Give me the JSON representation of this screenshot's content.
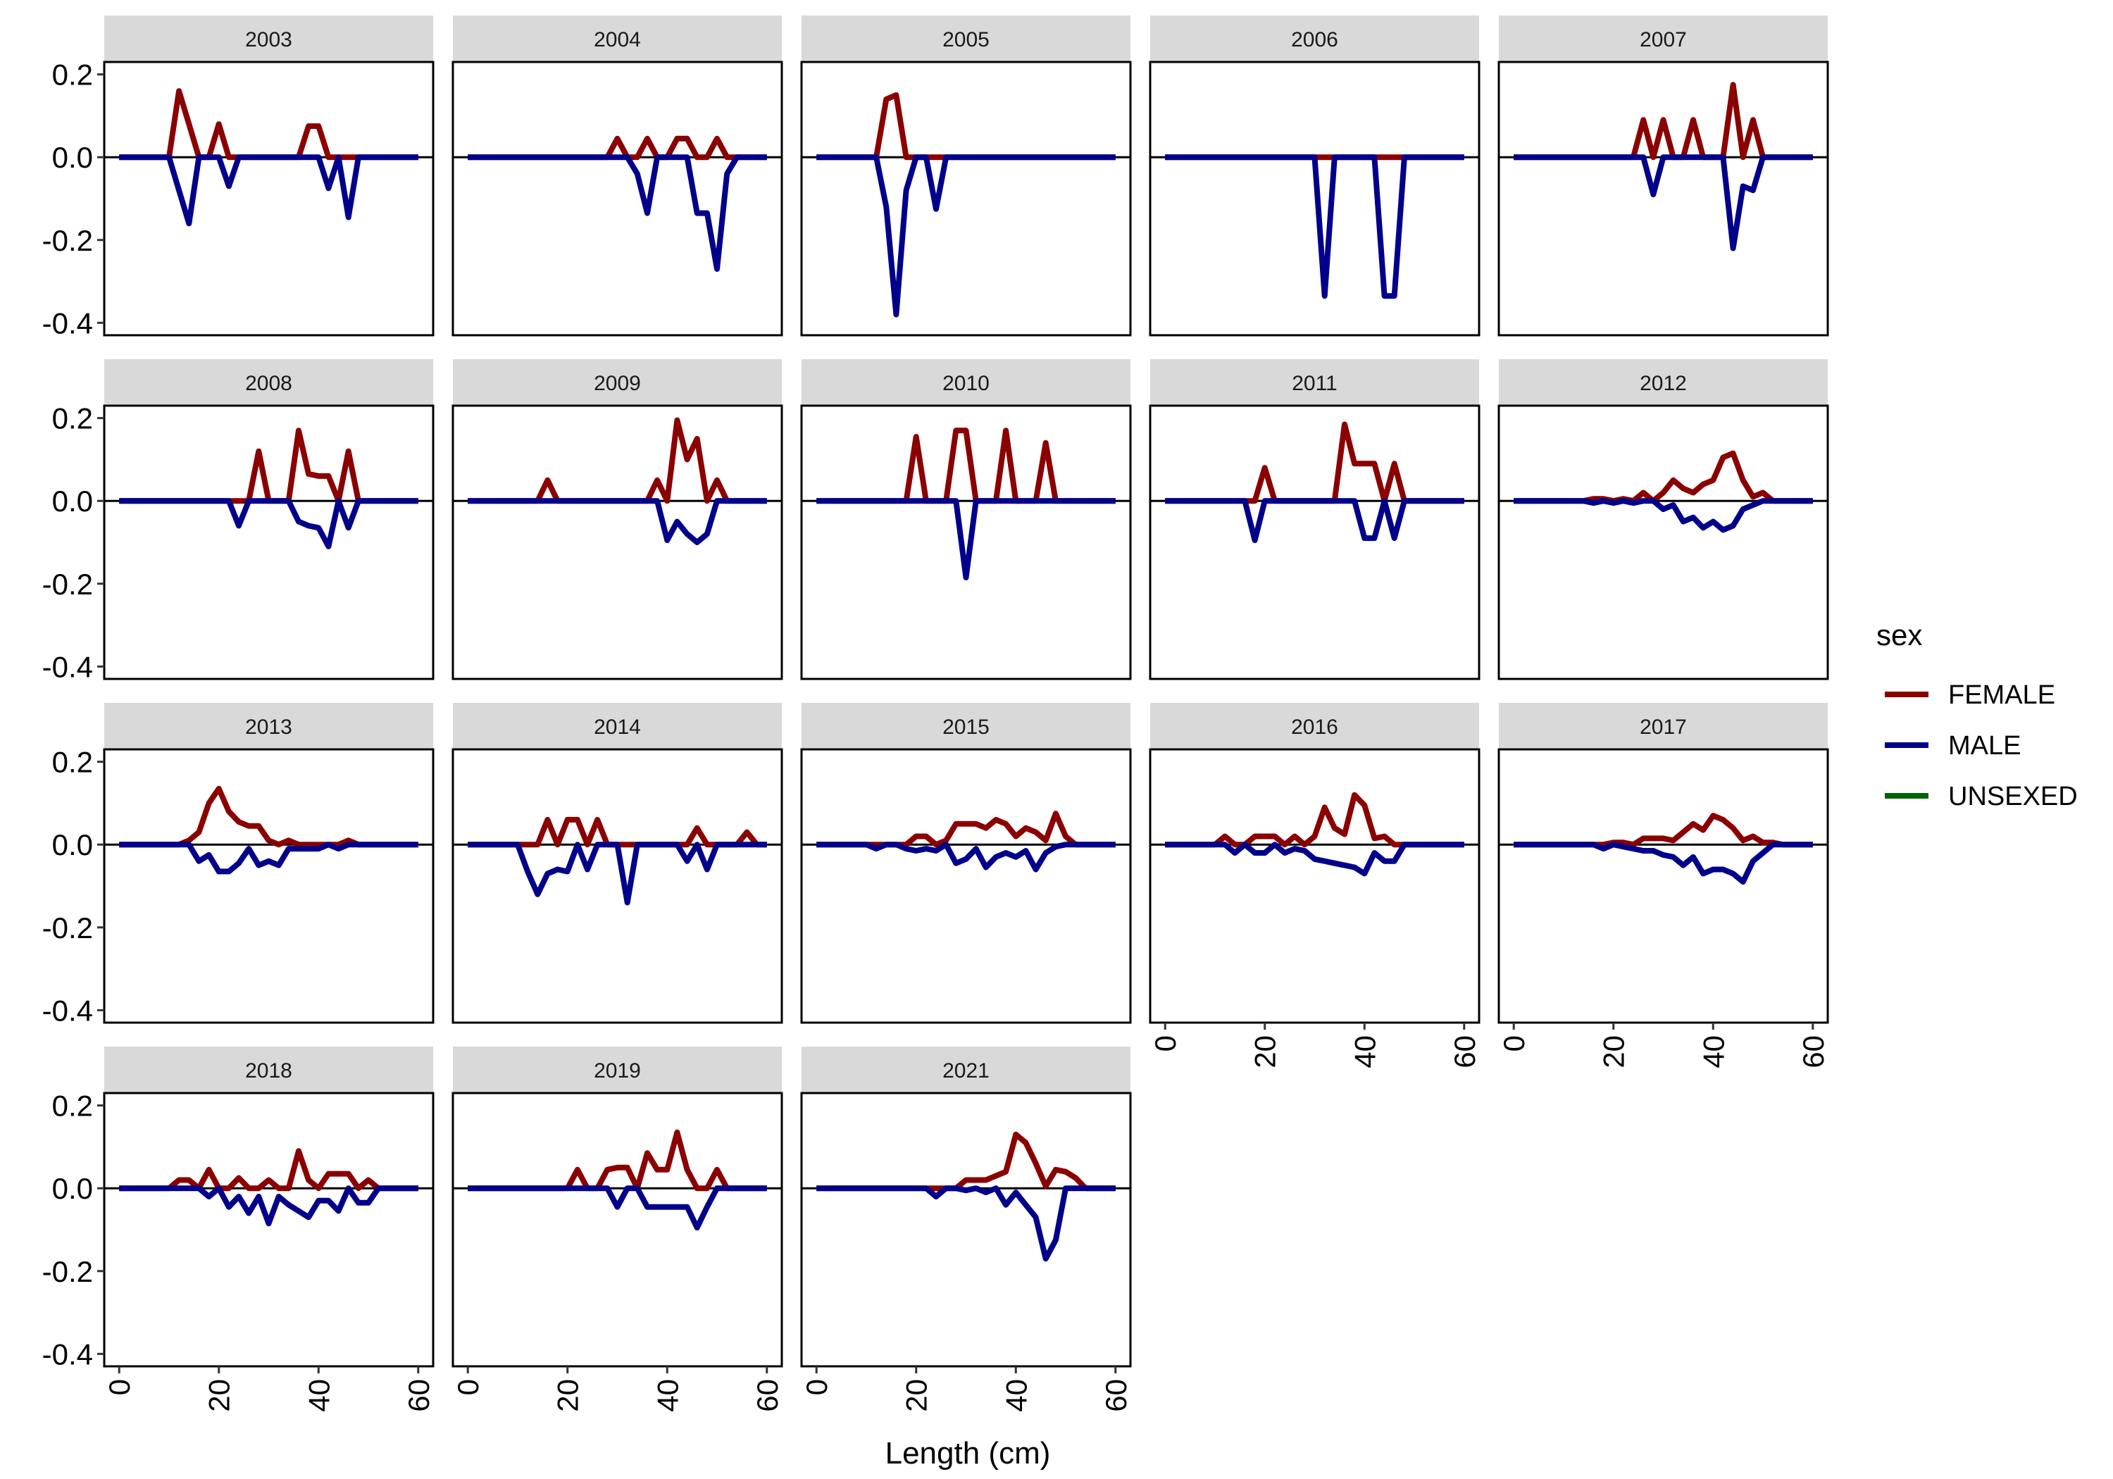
{
  "chart_data": {
    "type": "line",
    "facet_by": "year",
    "xlabel": "Length (cm)",
    "ylabel": "",
    "xlim": [
      0,
      60
    ],
    "ylim": [
      -0.4,
      0.2
    ],
    "x_ticks": [
      0,
      20,
      40,
      60
    ],
    "y_ticks": [
      -0.4,
      -0.2,
      0.0,
      0.2
    ],
    "zero_line": true,
    "legend": {
      "title": "sex",
      "position": "right",
      "items": [
        {
          "name": "FEMALE",
          "color": "#8b0000"
        },
        {
          "name": "MALE",
          "color": "#00008b"
        },
        {
          "name": "UNSEXED",
          "color": "#006400"
        }
      ]
    },
    "x": [
      0,
      2,
      4,
      6,
      8,
      10,
      12,
      14,
      16,
      18,
      20,
      22,
      24,
      26,
      28,
      30,
      32,
      34,
      36,
      38,
      40,
      42,
      44,
      46,
      48,
      50,
      52,
      54,
      56,
      58,
      60
    ],
    "panels": [
      {
        "year": "2003",
        "FEMALE": [
          0,
          0,
          0,
          0,
          0,
          0,
          0.16,
          0.08,
          0,
          0,
          0.08,
          0,
          0,
          0,
          0,
          0,
          0,
          0,
          0,
          0.075,
          0.075,
          0,
          0,
          0,
          0,
          0,
          0,
          0,
          0,
          0,
          0
        ],
        "MALE": [
          0,
          0,
          0,
          0,
          0,
          0,
          -0.08,
          -0.16,
          0,
          0,
          0,
          -0.07,
          0,
          0,
          0,
          0,
          0,
          0,
          0,
          0,
          0,
          -0.075,
          0,
          -0.145,
          0,
          0,
          0,
          0,
          0,
          0,
          0
        ]
      },
      {
        "year": "2004",
        "FEMALE": [
          0,
          0,
          0,
          0,
          0,
          0,
          0,
          0,
          0,
          0,
          0,
          0,
          0,
          0,
          0,
          0.045,
          0,
          0,
          0.045,
          0,
          0,
          0.045,
          0.045,
          0,
          0,
          0.045,
          0,
          0,
          0,
          0,
          0
        ],
        "MALE": [
          0,
          0,
          0,
          0,
          0,
          0,
          0,
          0,
          0,
          0,
          0,
          0,
          0,
          0,
          0,
          0,
          0,
          -0.04,
          -0.135,
          0,
          0,
          0,
          0,
          -0.135,
          -0.135,
          -0.27,
          -0.04,
          0,
          0,
          0,
          0
        ]
      },
      {
        "year": "2005",
        "FEMALE": [
          0,
          0,
          0,
          0,
          0,
          0,
          0,
          0.14,
          0.15,
          0,
          0,
          0,
          0,
          0,
          0,
          0,
          0,
          0,
          0,
          0,
          0,
          0,
          0,
          0,
          0,
          0,
          0,
          0,
          0,
          0,
          0
        ],
        "MALE": [
          0,
          0,
          0,
          0,
          0,
          0,
          0,
          -0.12,
          -0.38,
          -0.08,
          0,
          0,
          -0.125,
          0,
          0,
          0,
          0,
          0,
          0,
          0,
          0,
          0,
          0,
          0,
          0,
          0,
          0,
          0,
          0,
          0,
          0
        ]
      },
      {
        "year": "2006",
        "FEMALE": [
          0,
          0,
          0,
          0,
          0,
          0,
          0,
          0,
          0,
          0,
          0,
          0,
          0,
          0,
          0,
          0,
          0,
          0,
          0,
          0,
          0,
          0,
          0,
          0,
          0,
          0,
          0,
          0,
          0,
          0,
          0
        ],
        "MALE": [
          0,
          0,
          0,
          0,
          0,
          0,
          0,
          0,
          0,
          0,
          0,
          0,
          0,
          0,
          0,
          0,
          -0.335,
          0,
          0,
          0,
          0,
          0,
          -0.335,
          -0.335,
          0,
          0,
          0,
          0,
          0,
          0,
          0
        ]
      },
      {
        "year": "2007",
        "FEMALE": [
          0,
          0,
          0,
          0,
          0,
          0,
          0,
          0,
          0,
          0,
          0,
          0,
          0,
          0.09,
          0,
          0.09,
          0,
          0,
          0.09,
          0,
          0,
          0,
          0.175,
          0,
          0.09,
          0,
          0,
          0,
          0,
          0,
          0
        ],
        "MALE": [
          0,
          0,
          0,
          0,
          0,
          0,
          0,
          0,
          0,
          0,
          0,
          0,
          0,
          0,
          -0.09,
          0,
          0,
          0,
          0,
          0,
          0,
          0,
          -0.22,
          -0.07,
          -0.08,
          0,
          0,
          0,
          0,
          0,
          0
        ]
      },
      {
        "year": "2008",
        "FEMALE": [
          0,
          0,
          0,
          0,
          0,
          0,
          0,
          0,
          0,
          0,
          0,
          0,
          0,
          0,
          0.12,
          0,
          0,
          0,
          0.17,
          0.065,
          0.06,
          0.06,
          0,
          0.12,
          0,
          0,
          0,
          0,
          0,
          0,
          0
        ],
        "MALE": [
          0,
          0,
          0,
          0,
          0,
          0,
          0,
          0,
          0,
          0,
          0,
          0,
          -0.06,
          0,
          0,
          0,
          0,
          0,
          -0.05,
          -0.06,
          -0.065,
          -0.11,
          0,
          -0.065,
          0,
          0,
          0,
          0,
          0,
          0,
          0
        ]
      },
      {
        "year": "2009",
        "FEMALE": [
          0,
          0,
          0,
          0,
          0,
          0,
          0,
          0,
          0.05,
          0,
          0,
          0,
          0,
          0,
          0,
          0,
          0,
          0,
          0,
          0.05,
          0,
          0.195,
          0.1,
          0.15,
          0,
          0.05,
          0,
          0,
          0,
          0,
          0
        ],
        "MALE": [
          0,
          0,
          0,
          0,
          0,
          0,
          0,
          0,
          0,
          0,
          0,
          0,
          0,
          0,
          0,
          0,
          0,
          0,
          0,
          0,
          -0.095,
          -0.05,
          -0.08,
          -0.1,
          -0.08,
          0,
          0,
          0,
          0,
          0,
          0
        ]
      },
      {
        "year": "2010",
        "FEMALE": [
          0,
          0,
          0,
          0,
          0,
          0,
          0,
          0,
          0,
          0,
          0.155,
          0,
          0,
          0,
          0.17,
          0.17,
          0,
          0,
          0,
          0.17,
          0,
          0,
          0,
          0.14,
          0,
          0,
          0,
          0,
          0,
          0,
          0
        ],
        "MALE": [
          0,
          0,
          0,
          0,
          0,
          0,
          0,
          0,
          0,
          0,
          0,
          0,
          0,
          0,
          0,
          -0.185,
          0,
          0,
          0,
          0,
          0,
          0,
          0,
          0,
          0,
          0,
          0,
          0,
          0,
          0,
          0
        ]
      },
      {
        "year": "2011",
        "FEMALE": [
          0,
          0,
          0,
          0,
          0,
          0,
          0,
          0,
          0,
          0,
          0.08,
          0,
          0,
          0,
          0,
          0,
          0,
          0,
          0.185,
          0.09,
          0.09,
          0.09,
          0,
          0.09,
          0,
          0,
          0,
          0,
          0,
          0,
          0
        ],
        "MALE": [
          0,
          0,
          0,
          0,
          0,
          0,
          0,
          0,
          0,
          -0.095,
          0,
          0,
          0,
          0,
          0,
          0,
          0,
          0,
          0,
          0,
          -0.09,
          -0.09,
          0,
          -0.09,
          0,
          0,
          0,
          0,
          0,
          0,
          0
        ]
      },
      {
        "year": "2012",
        "FEMALE": [
          0,
          0,
          0,
          0,
          0,
          0,
          0,
          0,
          0.005,
          0.005,
          0,
          0.005,
          0,
          0.02,
          0,
          0.02,
          0.05,
          0.03,
          0.02,
          0.04,
          0.05,
          0.105,
          0.115,
          0.05,
          0.01,
          0.02,
          0,
          0,
          0,
          0,
          0
        ],
        "MALE": [
          0,
          0,
          0,
          0,
          0,
          0,
          0,
          0,
          -0.005,
          0,
          -0.005,
          0,
          -0.005,
          0,
          0,
          -0.02,
          -0.01,
          -0.05,
          -0.04,
          -0.065,
          -0.05,
          -0.07,
          -0.06,
          -0.02,
          -0.01,
          0,
          0,
          0,
          0,
          0,
          0
        ]
      },
      {
        "year": "2013",
        "FEMALE": [
          0,
          0,
          0,
          0,
          0,
          0,
          0,
          0.01,
          0.03,
          0.1,
          0.135,
          0.08,
          0.055,
          0.045,
          0.045,
          0.01,
          0,
          0.01,
          0,
          0,
          0,
          0,
          0,
          0.01,
          0,
          0,
          0,
          0,
          0,
          0,
          0
        ],
        "MALE": [
          0,
          0,
          0,
          0,
          0,
          0,
          0,
          0,
          -0.04,
          -0.025,
          -0.065,
          -0.065,
          -0.045,
          -0.01,
          -0.05,
          -0.04,
          -0.05,
          -0.01,
          -0.01,
          -0.01,
          -0.01,
          0,
          -0.01,
          0,
          0,
          0,
          0,
          0,
          0,
          0,
          0
        ]
      },
      {
        "year": "2014",
        "FEMALE": [
          0,
          0,
          0,
          0,
          0,
          0,
          0,
          0,
          0.06,
          0,
          0.06,
          0.06,
          0,
          0.06,
          0,
          0,
          0,
          0,
          0,
          0,
          0,
          0,
          0,
          0.04,
          0,
          0,
          0,
          0,
          0.03,
          0,
          0
        ],
        "MALE": [
          0,
          0,
          0,
          0,
          0,
          0,
          -0.065,
          -0.12,
          -0.07,
          -0.06,
          -0.065,
          0,
          -0.06,
          0,
          0,
          0,
          -0.14,
          0,
          0,
          0,
          0,
          0,
          -0.04,
          0,
          -0.06,
          0,
          0,
          0,
          0,
          0,
          0
        ]
      },
      {
        "year": "2015",
        "FEMALE": [
          0,
          0,
          0,
          0,
          0,
          0,
          0,
          0,
          0,
          0,
          0.02,
          0.02,
          0,
          0.01,
          0.05,
          0.05,
          0.05,
          0.04,
          0.06,
          0.05,
          0.02,
          0.04,
          0.03,
          0.01,
          0.075,
          0.02,
          0,
          0,
          0,
          0,
          0
        ],
        "MALE": [
          0,
          0,
          0,
          0,
          0,
          0,
          -0.01,
          0,
          0,
          -0.01,
          -0.015,
          -0.01,
          -0.015,
          0,
          -0.045,
          -0.035,
          -0.01,
          -0.055,
          -0.03,
          -0.02,
          -0.03,
          -0.015,
          -0.06,
          -0.02,
          -0.005,
          0,
          0,
          0,
          0,
          0,
          0
        ]
      },
      {
        "year": "2016",
        "FEMALE": [
          0,
          0,
          0,
          0,
          0,
          0,
          0.02,
          0,
          0,
          0.02,
          0.02,
          0.02,
          0,
          0.02,
          0,
          0.02,
          0.09,
          0.04,
          0.025,
          0.12,
          0.095,
          0.015,
          0.02,
          0,
          0,
          0,
          0,
          0,
          0,
          0,
          0
        ],
        "MALE": [
          0,
          0,
          0,
          0,
          0,
          0,
          0,
          -0.02,
          0,
          -0.02,
          -0.02,
          0,
          -0.02,
          -0.01,
          -0.015,
          -0.035,
          -0.04,
          -0.045,
          -0.05,
          -0.055,
          -0.07,
          -0.02,
          -0.04,
          -0.04,
          0,
          0,
          0,
          0,
          0,
          0,
          0
        ]
      },
      {
        "year": "2017",
        "FEMALE": [
          0,
          0,
          0,
          0,
          0,
          0,
          0,
          0,
          0,
          0,
          0.005,
          0.005,
          0,
          0.015,
          0.015,
          0.015,
          0.01,
          0.03,
          0.05,
          0.035,
          0.07,
          0.06,
          0.04,
          0.01,
          0.02,
          0.005,
          0.005,
          0,
          0,
          0,
          0
        ],
        "MALE": [
          0,
          0,
          0,
          0,
          0,
          0,
          0,
          0,
          0,
          -0.01,
          0,
          -0.005,
          -0.01,
          -0.015,
          -0.015,
          -0.025,
          -0.03,
          -0.05,
          -0.03,
          -0.07,
          -0.06,
          -0.06,
          -0.07,
          -0.09,
          -0.04,
          -0.02,
          0,
          0,
          0,
          0,
          0
        ]
      },
      {
        "year": "2018",
        "FEMALE": [
          0,
          0,
          0,
          0,
          0,
          0,
          0.02,
          0.02,
          0,
          0.045,
          0,
          0,
          0.025,
          0,
          0,
          0.02,
          0,
          0,
          0.09,
          0.02,
          0,
          0.035,
          0.035,
          0.035,
          0,
          0.02,
          0,
          0,
          0,
          0,
          0
        ],
        "MALE": [
          0,
          0,
          0,
          0,
          0,
          0,
          0,
          0,
          0,
          -0.02,
          0,
          -0.045,
          -0.02,
          -0.06,
          -0.02,
          -0.085,
          -0.02,
          -0.04,
          -0.055,
          -0.07,
          -0.03,
          -0.03,
          -0.055,
          0,
          -0.035,
          -0.035,
          0,
          0,
          0,
          0,
          0
        ]
      },
      {
        "year": "2019",
        "FEMALE": [
          0,
          0,
          0,
          0,
          0,
          0,
          0,
          0,
          0,
          0,
          0,
          0.045,
          0,
          0,
          0.045,
          0.05,
          0.05,
          0,
          0.085,
          0.045,
          0.045,
          0.135,
          0.045,
          0,
          0,
          0.045,
          0,
          0,
          0,
          0,
          0
        ],
        "MALE": [
          0,
          0,
          0,
          0,
          0,
          0,
          0,
          0,
          0,
          0,
          0,
          0,
          0,
          0,
          0,
          -0.045,
          0,
          0,
          -0.045,
          -0.045,
          -0.045,
          -0.045,
          -0.045,
          -0.095,
          -0.045,
          0,
          0,
          0,
          0,
          0,
          0
        ]
      },
      {
        "year": "2021",
        "FEMALE": [
          0,
          0,
          0,
          0,
          0,
          0,
          0,
          0,
          0,
          0,
          0,
          0,
          0,
          0,
          0,
          0.02,
          0.02,
          0.02,
          0.03,
          0.04,
          0.13,
          0.11,
          0.06,
          0.005,
          0.045,
          0.04,
          0.025,
          0,
          0,
          0,
          0
        ],
        "MALE": [
          0,
          0,
          0,
          0,
          0,
          0,
          0,
          0,
          0,
          0,
          0,
          0,
          -0.02,
          0,
          0,
          -0.005,
          0,
          -0.01,
          0,
          -0.04,
          -0.01,
          -0.04,
          -0.07,
          -0.17,
          -0.125,
          0,
          0,
          0,
          0,
          0,
          0
        ]
      }
    ]
  }
}
